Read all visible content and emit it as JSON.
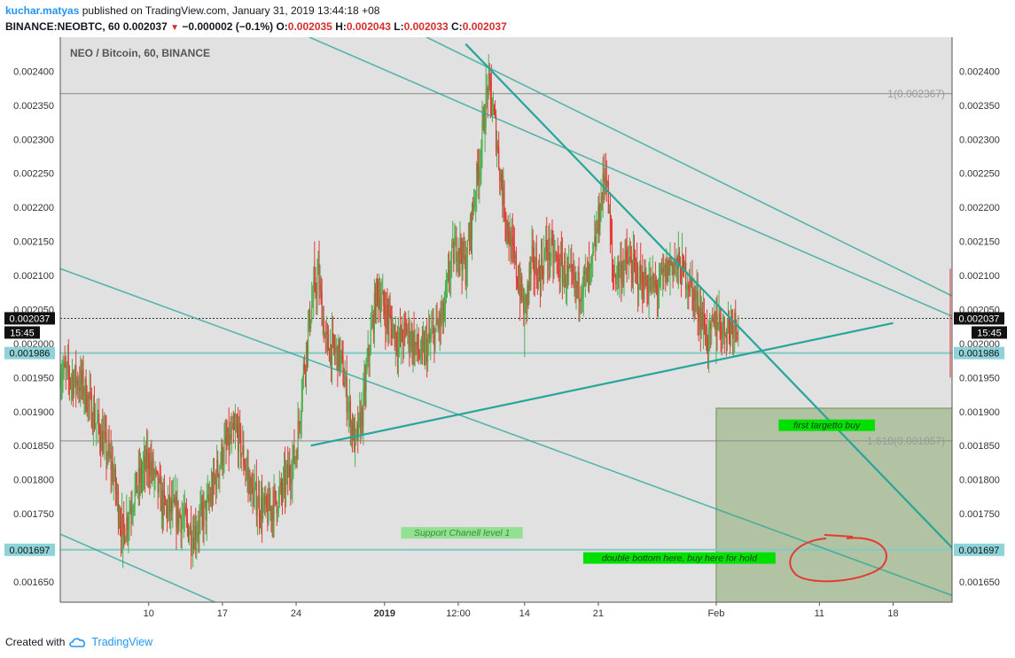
{
  "header": {
    "author": "kuchar.matyas",
    "published_text": "published on TradingView.com, January 31, 2019 13:44:18 +08",
    "symbol": "BINANCE:NEOBTC, 60",
    "last": "0.002037",
    "change": "−0.000002 (−0.1%)",
    "o_label": "O:",
    "o_value": "0.002035",
    "h_label": "H:",
    "h_value": "0.002043",
    "l_label": "L:",
    "l_value": "0.002033",
    "c_label": "C:",
    "c_value": "0.002037"
  },
  "footer": {
    "created_with": "Created with",
    "brand": "TradingView"
  },
  "colors": {
    "up": "#4caf50",
    "down": "#e53935",
    "trend": "#26a69a",
    "hline": "#80cbc4",
    "box": "#8bab6f",
    "label_bg": "#00e000",
    "panel": "#e1e1e1"
  },
  "chart_data": {
    "type": "candlestick",
    "title": "NEO / Bitcoin, 60, BINANCE",
    "ylim": [
      0.00162,
      0.00245
    ],
    "xlim": [
      0,
      121
    ],
    "y_ticks": [
      "0.001650",
      "0.001700",
      "0.001750",
      "0.001800",
      "0.001850",
      "0.001900",
      "0.001950",
      "0.002000",
      "0.002050",
      "0.002100",
      "0.002150",
      "0.002200",
      "0.002250",
      "0.002300",
      "0.002350",
      "0.002400"
    ],
    "x_ticks": [
      {
        "label": "10",
        "x": 12
      },
      {
        "label": "17",
        "x": 22
      },
      {
        "label": "24",
        "x": 32
      },
      {
        "label": "2019",
        "x": 44,
        "bold": true
      },
      {
        "label": "12:00",
        "x": 54
      },
      {
        "label": "14",
        "x": 63
      },
      {
        "label": "21",
        "x": 73
      },
      {
        "label": "Feb",
        "x": 89
      },
      {
        "label": "11",
        "x": 103
      },
      {
        "label": "18",
        "x": 113
      }
    ],
    "last_price": "0.002037",
    "time_left": "15:45",
    "price_series": [
      [
        0,
        0.00196
      ],
      [
        3,
        0.00194
      ],
      [
        5,
        0.00188
      ],
      [
        7,
        0.00182
      ],
      [
        8.5,
        0.00172
      ],
      [
        10,
        0.00178
      ],
      [
        12,
        0.00183
      ],
      [
        14,
        0.00176
      ],
      [
        16,
        0.00175
      ],
      [
        18,
        0.00172
      ],
      [
        20,
        0.00176
      ],
      [
        22,
        0.00184
      ],
      [
        24,
        0.00187
      ],
      [
        26,
        0.00178
      ],
      [
        28,
        0.00175
      ],
      [
        30,
        0.00178
      ],
      [
        32,
        0.00184
      ],
      [
        33,
        0.00196
      ],
      [
        34,
        0.00205
      ],
      [
        35,
        0.0021
      ],
      [
        36,
        0.002
      ],
      [
        38,
        0.00198
      ],
      [
        40,
        0.00185
      ],
      [
        41,
        0.0019
      ],
      [
        42,
        0.002
      ],
      [
        43,
        0.00208
      ],
      [
        44,
        0.00205
      ],
      [
        46,
        0.002
      ],
      [
        47,
        0.00202
      ],
      [
        49,
        0.00198
      ],
      [
        50,
        0.002
      ],
      [
        51,
        0.00202
      ],
      [
        52,
        0.00204
      ],
      [
        53,
        0.00212
      ],
      [
        54,
        0.00215
      ],
      [
        55,
        0.00211
      ],
      [
        56,
        0.0022
      ],
      [
        57,
        0.00228
      ],
      [
        58,
        0.00238
      ],
      [
        59,
        0.00232
      ],
      [
        60,
        0.00222
      ],
      [
        61,
        0.00215
      ],
      [
        62,
        0.0021
      ],
      [
        63,
        0.00205
      ],
      [
        64,
        0.00212
      ],
      [
        65,
        0.0021
      ],
      [
        66,
        0.00214
      ],
      [
        68,
        0.00211
      ],
      [
        70,
        0.00208
      ],
      [
        72,
        0.0021
      ],
      [
        73,
        0.00218
      ],
      [
        74,
        0.00226
      ],
      [
        75,
        0.0021
      ],
      [
        77,
        0.00212
      ],
      [
        79,
        0.00209
      ],
      [
        81,
        0.00208
      ],
      [
        83,
        0.00212
      ],
      [
        85,
        0.0021
      ],
      [
        87,
        0.00204
      ],
      [
        88,
        0.002
      ],
      [
        89,
        0.00204
      ],
      [
        90,
        0.00202
      ],
      [
        91,
        0.00203
      ],
      [
        92,
        0.002037
      ]
    ],
    "spikes": [
      {
        "x": 8.5,
        "low": 0.00167
      },
      {
        "x": 34.5,
        "high": 0.00215
      },
      {
        "x": 58.5,
        "high": 0.00241
      },
      {
        "x": 63,
        "low": 0.00198
      },
      {
        "x": 74,
        "high": 0.00228
      },
      {
        "x": 89,
        "low": 0.00197
      }
    ],
    "horizontal_lines": [
      {
        "price": 0.001986,
        "label": "0.001986"
      },
      {
        "price": 0.001697,
        "label": "0.001697"
      }
    ],
    "fib_levels": [
      {
        "price": 0.002367,
        "label": "1(0.002367)"
      },
      {
        "price": 0.001857,
        "label": "1.618(0.001857)"
      }
    ],
    "trend_lines": [
      {
        "from": [
          34,
          0.00185
        ],
        "to": [
          113,
          0.00203
        ]
      },
      {
        "from": [
          55,
          0.00244
        ],
        "to": [
          121,
          0.0017
        ]
      },
      {
        "from": [
          33.8,
          0.00245
        ],
        "to": [
          121,
          0.00204
        ]
      },
      {
        "from": [
          49.7,
          0.00245
        ],
        "to": [
          121,
          0.00207
        ]
      },
      {
        "from": [
          0,
          0.00211
        ],
        "to": [
          121,
          0.00163
        ]
      },
      {
        "from": [
          0,
          0.00172
        ],
        "to": [
          21,
          0.00162
        ]
      }
    ],
    "target_box": {
      "x0": 89,
      "x1": 121,
      "p0": 0.00162,
      "p1": 0.001905
    },
    "annotations": [
      {
        "text": "first targetto buy",
        "x": 104,
        "price": 0.001878
      },
      {
        "text": "Support Chanell level 1",
        "x": 54.5,
        "price": 0.00172
      },
      {
        "text": "double bottom here, buy here for hold",
        "x": 84,
        "price": 0.001683
      }
    ]
  }
}
